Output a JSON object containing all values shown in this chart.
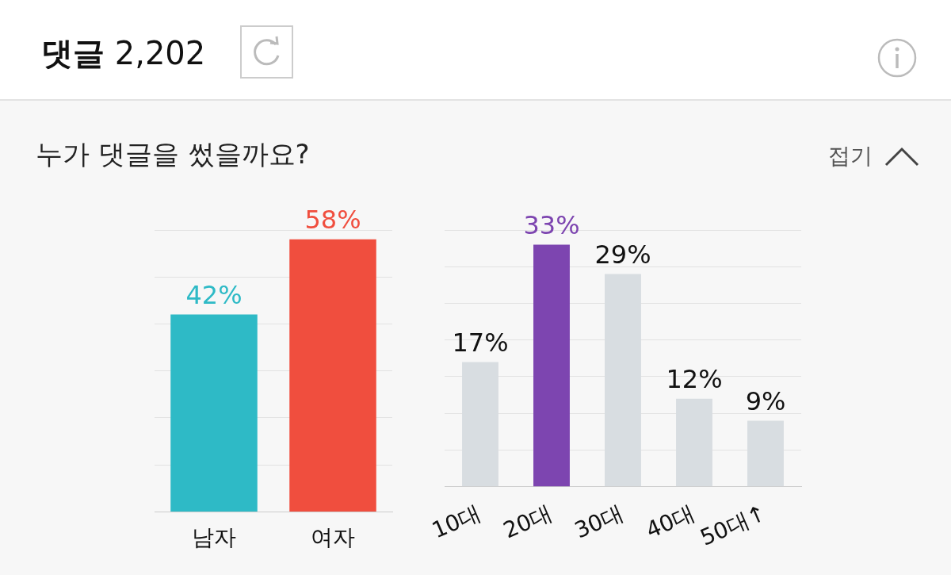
{
  "chart_data": [
    {
      "type": "bar",
      "title": "댓글 2,202",
      "subtitle": "누가 댓글을 썼을까요?",
      "annotations": [
        "접기"
      ],
      "categories": [
        "남자",
        "여자"
      ],
      "values": [
        42,
        58
      ],
      "colors": [
        "#2ebac6",
        "#f04e3e"
      ],
      "value_labels": [
        "42%",
        "58%"
      ],
      "grid": "y",
      "tick_labels": "x"
    },
    {
      "type": "bar",
      "categories": [
        "10대",
        "20대",
        "30대",
        "40대",
        "50대↑"
      ],
      "values": [
        17,
        33,
        29,
        12,
        9
      ],
      "colors": [
        "#d8dde1",
        "#7d45b0",
        "#d8dde1",
        "#d8dde1",
        "#d8dde1"
      ],
      "value_labels": [
        "17%",
        "33%",
        "29%",
        "12%",
        "9%"
      ],
      "grid": "y",
      "tick_labels": "x"
    }
  ]
}
